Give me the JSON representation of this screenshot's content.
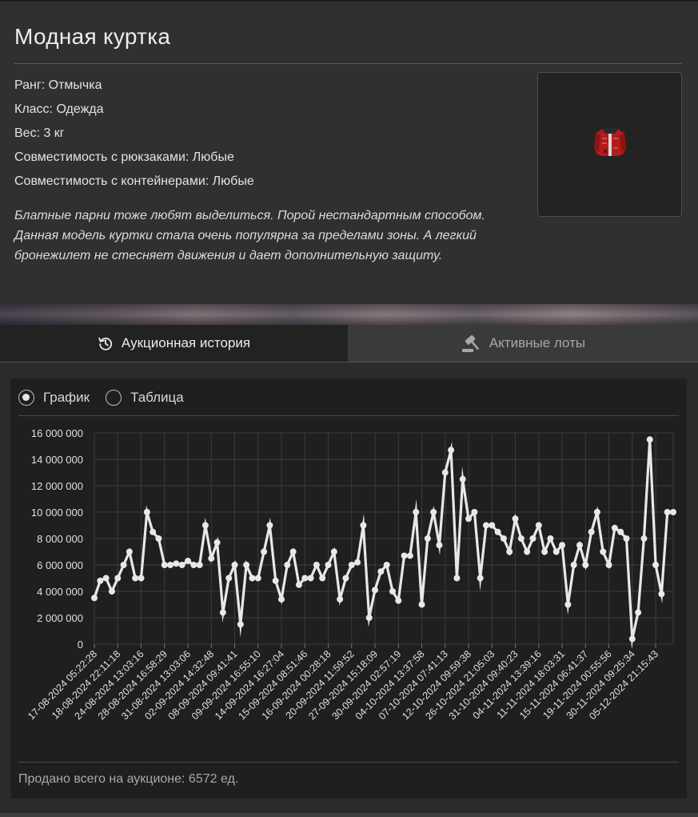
{
  "item": {
    "title": "Модная куртка",
    "properties": [
      "Ранг: Отмычка",
      "Класс: Одежда",
      "Вес: 3 кг",
      "Совместимость с рюкзаками: Любые",
      "Совместимость с контейнерами: Любые"
    ],
    "description": "Блатные парни тоже любят выделиться. Порой нестандартным способом. Данная модель куртки стала очень популярна за пределами зоны. А легкий бронежилет не стесняет движения и дает дополнительную защиту.",
    "image_icon": "red-jacket-icon"
  },
  "tabs": [
    {
      "label": "Аукционная история",
      "icon": "history-icon",
      "active": true
    },
    {
      "label": "Активные лоты",
      "icon": "gavel-icon",
      "active": false
    }
  ],
  "view": {
    "options": [
      "График",
      "Таблица"
    ],
    "selected": "График"
  },
  "chart_data": {
    "type": "line",
    "title": "",
    "xlabel": "",
    "ylabel": "",
    "ylim": [
      0,
      16000000
    ],
    "yticks": [
      "16 000 000",
      "14 000 000",
      "12 000 000",
      "10 000 000",
      "8 000 000",
      "6 000 000",
      "4 000 000",
      "2 000 000",
      "0"
    ],
    "x_tick_labels": [
      "17-08-2024 05:22:28",
      "18-08-2024 22:11:18",
      "24-08-2024 13:03:16",
      "28-08-2024 16:58:29",
      "31-08-2024 13:03:06",
      "02-09-2024 14:32:48",
      "08-09-2024 09:41:41",
      "09-09-2024 16:55:10",
      "14-09-2024 16:27:04",
      "15-09-2024 08:51:46",
      "16-09-2024 00:28:18",
      "20-09-2024 11:59:52",
      "27-09-2024 15:18:09",
      "30-09-2024 02:57:19",
      "04-10-2024 13:37:58",
      "07-10-2024 07:41:13",
      "12-10-2024 09:59:38",
      "26-10-2024 21:05:03",
      "31-10-2024 09:40:23",
      "04-11-2024 13:39:16",
      "11-11-2024 18:03:31",
      "15-11-2024 06:41:37",
      "19-11-2024 00:55:56",
      "30-11-2024 09:25:34",
      "05-12-2024 21:15:43"
    ],
    "grid": true,
    "legend": "none",
    "line_color": "#e8e8e8",
    "series": [
      {
        "values": [
          3500000,
          4800000,
          5000000,
          4000000,
          5000000,
          6000000,
          7000000,
          5000000,
          5000000,
          10000000,
          8500000,
          8000000,
          6000000,
          6000000,
          6100000,
          6000000,
          6300000,
          6000000,
          6000000,
          9000000,
          6500000,
          7700000,
          2400000,
          5000000,
          6000000,
          1500000,
          6000000,
          5000000,
          5000000,
          7000000,
          9000000,
          4800000,
          3400000,
          6000000,
          7000000,
          4500000,
          5000000,
          5000000,
          6000000,
          5000000,
          6000000,
          7000000,
          3400000,
          5000000,
          6000000,
          6200000,
          9000000,
          2000000,
          4100000,
          5500000,
          6000000,
          4000000,
          3300000,
          6700000,
          6700000,
          10000000,
          3000000,
          8000000,
          10000000,
          7500000,
          13000000,
          14700000,
          5000000,
          12500000,
          9500000,
          10000000,
          5000000,
          9000000,
          9000000,
          8500000,
          8000000,
          7000000,
          9500000,
          8000000,
          7000000,
          8000000,
          9000000,
          7000000,
          8000000,
          7000000,
          7500000,
          3000000,
          6000000,
          7500000,
          6000000,
          8500000,
          10000000,
          7000000,
          6000000,
          8800000,
          8500000,
          8000000,
          400000,
          2400000,
          8000000,
          15500000,
          6000000,
          3800000,
          10000000,
          10000000
        ]
      }
    ]
  },
  "footer": {
    "total_sold": "Продано всего на аукционе: 6572 ед."
  }
}
